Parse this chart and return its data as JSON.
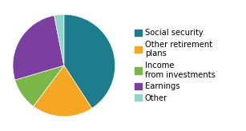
{
  "legend_labels": [
    "Social security",
    "Other retirement\nplans",
    "Income\nfrom investments",
    "Earnings",
    "Other"
  ],
  "values": [
    40,
    19,
    10,
    26,
    3
  ],
  "colors": [
    "#1e7d8c",
    "#f5a623",
    "#7ab648",
    "#7b3fa0",
    "#8fd4c8"
  ],
  "startangle": 90,
  "figsize": [
    3.07,
    1.64
  ],
  "dpi": 100,
  "background_color": "#ffffff",
  "legend_fontsize": 7.2
}
